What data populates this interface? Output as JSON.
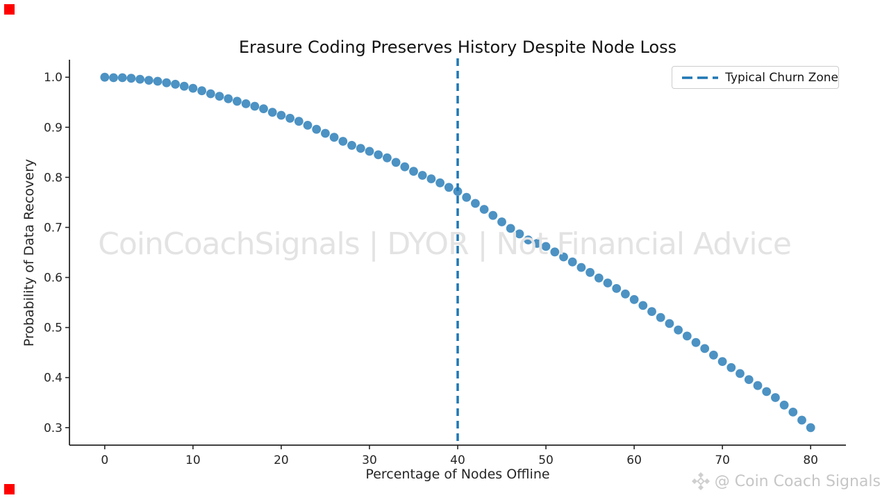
{
  "page": {
    "background": "#ffffff"
  },
  "chart_data": {
    "type": "scatter",
    "title": "Erasure Coding Preserves History Despite Node Loss",
    "xlabel": "Percentage of Nodes Offline",
    "ylabel": "Probability of Data Recovery",
    "xlim": [
      -4,
      84
    ],
    "ylim": [
      0.265,
      1.035
    ],
    "xticks": [
      0,
      10,
      20,
      30,
      40,
      50,
      60,
      70,
      80
    ],
    "yticks": [
      0.3,
      0.4,
      0.5,
      0.6,
      0.7,
      0.8,
      0.9,
      1.0
    ],
    "grid": false,
    "legend_position": "upper right",
    "point_color": "#1f77b4",
    "point_opacity": 0.8,
    "point_radius": 6.4,
    "axis_color": "#262626",
    "vline": {
      "x": 40,
      "color": "#1f77b4",
      "style": "dashed",
      "label": "Typical Churn Zone"
    },
    "x": [
      0,
      1,
      2,
      3,
      4,
      5,
      6,
      7,
      8,
      9,
      10,
      11,
      12,
      13,
      14,
      15,
      16,
      17,
      18,
      19,
      20,
      21,
      22,
      23,
      24,
      25,
      26,
      27,
      28,
      29,
      30,
      31,
      32,
      33,
      34,
      35,
      36,
      37,
      38,
      39,
      40,
      41,
      42,
      43,
      44,
      45,
      46,
      47,
      48,
      49,
      50,
      51,
      52,
      53,
      54,
      55,
      56,
      57,
      58,
      59,
      60,
      61,
      62,
      63,
      64,
      65,
      66,
      67,
      68,
      69,
      70,
      71,
      72,
      73,
      74,
      75,
      76,
      77,
      78,
      79,
      80
    ],
    "y": [
      1.0,
      0.999,
      0.999,
      0.998,
      0.996,
      0.994,
      0.992,
      0.989,
      0.986,
      0.982,
      0.978,
      0.973,
      0.967,
      0.962,
      0.957,
      0.952,
      0.947,
      0.942,
      0.937,
      0.93,
      0.924,
      0.918,
      0.912,
      0.904,
      0.896,
      0.888,
      0.88,
      0.872,
      0.864,
      0.858,
      0.852,
      0.845,
      0.839,
      0.83,
      0.821,
      0.812,
      0.804,
      0.797,
      0.789,
      0.78,
      0.772,
      0.76,
      0.748,
      0.736,
      0.724,
      0.711,
      0.698,
      0.687,
      0.675,
      0.668,
      0.662,
      0.651,
      0.641,
      0.631,
      0.62,
      0.61,
      0.599,
      0.589,
      0.578,
      0.567,
      0.556,
      0.544,
      0.532,
      0.52,
      0.508,
      0.495,
      0.483,
      0.47,
      0.458,
      0.445,
      0.432,
      0.42,
      0.408,
      0.396,
      0.384,
      0.372,
      0.36,
      0.345,
      0.331,
      0.315,
      0.3
    ]
  },
  "legend": {
    "label": "Typical Churn Zone",
    "line_color": "#1f77b4"
  },
  "watermark": {
    "text": "CoinCoachSignals | DYOR | Not Financial Advice",
    "color": "#e3e3e3"
  },
  "signature": {
    "text": "@ Coin Coach Signals",
    "icon": "diamond-logo-icon",
    "color": "#c6c6c6"
  },
  "markers": {
    "color": "#ff0000",
    "count": 2
  }
}
